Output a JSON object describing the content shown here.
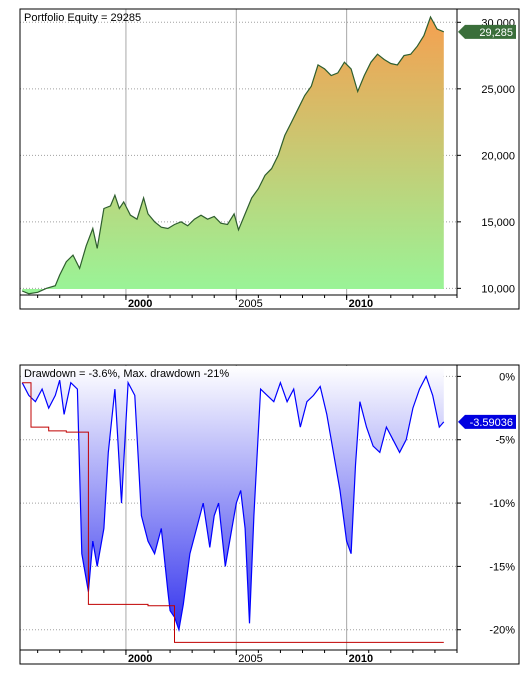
{
  "chart_data": [
    {
      "type": "area",
      "title": "Portfolio Equity = 29285",
      "y_ticks": [
        "10,000",
        "15,000",
        "20,000",
        "25,000",
        "30,000"
      ],
      "y_tick_values": [
        10000,
        15000,
        20000,
        25000,
        30000
      ],
      "ylim": [
        9500,
        31000
      ],
      "x_ticks": [
        "2000",
        "2005",
        "2010"
      ],
      "x_tick_values": [
        2000,
        2005,
        2010
      ],
      "xlim": [
        1995.2,
        2015.0
      ],
      "last_value_label": "29,285",
      "colors": {
        "line": "#2e5e2e",
        "fill_top": "#f5a050",
        "fill_bottom": "#98f598",
        "badge": "#3a6e3a"
      },
      "series": [
        {
          "x": [
            1995.3,
            1995.6,
            1996.0,
            1996.4,
            1996.8,
            1997.0,
            1997.3,
            1997.6,
            1997.9,
            1998.2,
            1998.5,
            1998.7,
            1999.0,
            1999.3,
            1999.5,
            1999.7,
            1999.9,
            2000.2,
            2000.5,
            2000.8,
            2001.0,
            2001.3,
            2001.6,
            2001.9,
            2002.2,
            2002.5,
            2002.8,
            2003.1,
            2003.4,
            2003.7,
            2004.0,
            2004.3,
            2004.6,
            2004.9,
            2005.1,
            2005.4,
            2005.7,
            2006.0,
            2006.3,
            2006.6,
            2006.9,
            2007.2,
            2007.5,
            2007.8,
            2008.1,
            2008.4,
            2008.7,
            2009.0,
            2009.3,
            2009.6,
            2009.9,
            2010.2,
            2010.5,
            2010.8,
            2011.1,
            2011.4,
            2011.7,
            2012.0,
            2012.3,
            2012.6,
            2012.9,
            2013.2,
            2013.5,
            2013.8,
            2014.1,
            2014.4
          ],
          "values": [
            9800,
            9600,
            9700,
            10000,
            10200,
            11000,
            12000,
            12500,
            11500,
            13200,
            14500,
            13000,
            16000,
            16200,
            17000,
            16000,
            16500,
            15500,
            15200,
            16800,
            15600,
            15000,
            14600,
            14500,
            14800,
            15000,
            14700,
            15200,
            15500,
            15200,
            15400,
            14900,
            14800,
            15600,
            14400,
            15600,
            16800,
            17500,
            18500,
            19000,
            20000,
            21500,
            22500,
            23500,
            24500,
            25200,
            26800,
            26500,
            26000,
            26200,
            27000,
            26500,
            24800,
            26000,
            27000,
            27600,
            27200,
            26900,
            26800,
            27500,
            27600,
            28200,
            29000,
            30400,
            29500,
            29285
          ]
        }
      ]
    },
    {
      "type": "area",
      "title": "Drawdown = -3.6%, Max. drawdown -21%",
      "y_ticks": [
        "0%",
        "-5%",
        "-10%",
        "-15%",
        "-20%"
      ],
      "y_tick_values": [
        0,
        -5,
        -10,
        -15,
        -20
      ],
      "ylim": [
        -21.6,
        0.9
      ],
      "x_ticks": [
        "2000",
        "2005",
        "2010"
      ],
      "x_tick_values": [
        2000,
        2005,
        2010
      ],
      "xlim": [
        1995.2,
        2015.0
      ],
      "last_value_label": "-3.59036",
      "colors": {
        "line": "#0000ff",
        "fill_top": "#ffffff",
        "fill_bottom": "#3535ee",
        "max_dd_line": "#c00000",
        "badge": "#0000e0"
      },
      "series": [
        {
          "name": "drawdown",
          "x": [
            1995.3,
            1995.6,
            1995.9,
            1996.2,
            1996.5,
            1996.8,
            1997.0,
            1997.2,
            1997.5,
            1997.8,
            1998.0,
            1998.3,
            1998.5,
            1998.7,
            1999.0,
            1999.2,
            1999.5,
            1999.8,
            2000.1,
            2000.4,
            2000.7,
            2001.0,
            2001.3,
            2001.6,
            2001.9,
            2002.0,
            2002.2,
            2002.4,
            2002.6,
            2002.9,
            2003.2,
            2003.5,
            2003.8,
            2004.0,
            2004.2,
            2004.5,
            2004.8,
            2005.0,
            2005.2,
            2005.4,
            2005.6,
            2005.8,
            2006.1,
            2006.4,
            2006.7,
            2007.0,
            2007.3,
            2007.6,
            2007.9,
            2008.2,
            2008.5,
            2008.8,
            2009.1,
            2009.4,
            2009.7,
            2010.0,
            2010.2,
            2010.4,
            2010.6,
            2010.9,
            2011.2,
            2011.5,
            2011.8,
            2012.1,
            2012.4,
            2012.7,
            2013.0,
            2013.3,
            2013.6,
            2013.9,
            2014.2,
            2014.4
          ],
          "values": [
            -0.5,
            -1.5,
            -2.0,
            -1.0,
            -2.5,
            -1.5,
            -0.3,
            -3.0,
            -0.5,
            -1.0,
            -14.0,
            -17.0,
            -13.0,
            -15.0,
            -12.0,
            -6.0,
            -1.0,
            -10.0,
            -0.5,
            -1.5,
            -11.0,
            -13.0,
            -14.0,
            -12.0,
            -17.0,
            -18.5,
            -19.0,
            -20.0,
            -18.0,
            -14.0,
            -12.0,
            -10.0,
            -13.5,
            -11.0,
            -10.0,
            -15.0,
            -12.0,
            -10.0,
            -9.0,
            -12.0,
            -19.5,
            -11.0,
            -1.0,
            -1.5,
            -2.0,
            -0.5,
            -2.0,
            -1.0,
            -4.0,
            -2.0,
            -1.5,
            -0.8,
            -3.0,
            -6.0,
            -9.0,
            -13.0,
            -14.0,
            -7.0,
            -2.0,
            -4.0,
            -5.5,
            -6.0,
            -4.0,
            -5.0,
            -6.0,
            -5.0,
            -2.5,
            -1.0,
            0.0,
            -1.5,
            -4.0,
            -3.59
          ]
        },
        {
          "name": "max drawdown",
          "x": [
            1995.3,
            1995.7,
            1995.7,
            1996.5,
            1996.5,
            1997.3,
            1997.3,
            1998.3,
            1998.3,
            2001.0,
            2001.0,
            2002.2,
            2002.2,
            2014.4
          ],
          "values": [
            -0.5,
            -0.5,
            -4.0,
            -4.0,
            -4.3,
            -4.3,
            -4.4,
            -4.4,
            -18.0,
            -18.0,
            -18.1,
            -18.1,
            -21.0,
            -21.0
          ]
        }
      ]
    }
  ]
}
